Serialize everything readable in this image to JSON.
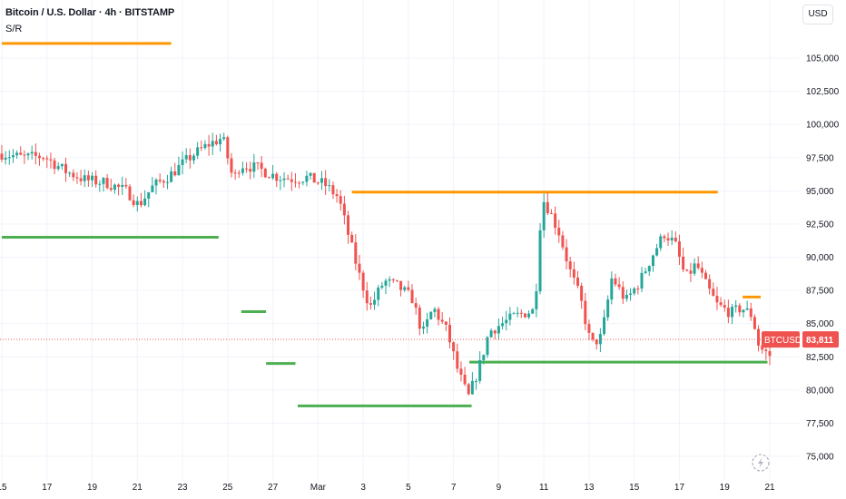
{
  "header": {
    "title": "Bitcoin / U.S. Dollar · 4h · BITSTAMP",
    "indicator": "S/R",
    "currency_button": "USD"
  },
  "colors": {
    "up": "#26a69a",
    "down": "#ef5350",
    "resistance": "#ff9800",
    "support": "#4caf50",
    "grid": "#f0f3fa",
    "price_line": "#ef5350"
  },
  "price_label": {
    "symbol": "BTCUSD",
    "value": "83,811",
    "price": 83811
  },
  "chart_data": {
    "type": "candlestick",
    "title": "Bitcoin / U.S. Dollar · 4h · BITSTAMP",
    "ylim": [
      73500,
      107800
    ],
    "y_ticks": [
      75000,
      77500,
      80000,
      82500,
      85000,
      87500,
      90000,
      92500,
      95000,
      97500,
      100000,
      102500,
      105000
    ],
    "y_tick_labels": [
      "75,000",
      "77,500",
      "80,000",
      "82,500",
      "85,000",
      "87,500",
      "90,000",
      "92,500",
      "95,000",
      "97,500",
      "100,000",
      "102,500",
      "105,000"
    ],
    "x_ticks": [
      "15",
      "17",
      "19",
      "21",
      "23",
      "25",
      "27",
      "Mar",
      "3",
      "5",
      "7",
      "9",
      "11",
      "13",
      "15",
      "17",
      "19",
      "21"
    ],
    "x_range_days": [
      15,
      36.9
    ],
    "grid": true,
    "close_path": [
      [
        15.0,
        97800
      ],
      [
        15.6,
        97500
      ],
      [
        16.2,
        97600
      ],
      [
        16.8,
        96500
      ],
      [
        17.4,
        95800
      ],
      [
        18.0,
        95600
      ],
      [
        18.6,
        94900
      ],
      [
        18.9,
        93900
      ],
      [
        19.3,
        95300
      ],
      [
        19.8,
        96200
      ],
      [
        20.4,
        97600
      ],
      [
        20.9,
        98500
      ],
      [
        21.3,
        99000
      ],
      [
        21.6,
        95800
      ],
      [
        21.8,
        97000
      ],
      [
        22.3,
        96700
      ],
      [
        22.8,
        96100
      ],
      [
        23.3,
        95900
      ],
      [
        23.7,
        96000
      ],
      [
        24.2,
        95500
      ],
      [
        24.6,
        94500
      ],
      [
        24.9,
        91500
      ],
      [
        25.2,
        88600
      ],
      [
        25.5,
        86200
      ],
      [
        25.9,
        88200
      ],
      [
        26.3,
        87800
      ],
      [
        26.7,
        86900
      ],
      [
        27.0,
        84200
      ],
      [
        27.3,
        86200
      ],
      [
        27.7,
        84400
      ],
      [
        28.0,
        81500
      ],
      [
        28.3,
        79400
      ],
      [
        28.6,
        81600
      ],
      [
        28.9,
        84400
      ],
      [
        29.2,
        84900
      ],
      [
        29.6,
        85500
      ],
      [
        29.9,
        85800
      ],
      [
        30.2,
        86000
      ],
      [
        30.4,
        94500
      ],
      [
        30.6,
        93600
      ],
      [
        30.9,
        91800
      ],
      [
        31.2,
        89000
      ],
      [
        31.5,
        86900
      ],
      [
        31.8,
        83400
      ],
      [
        32.1,
        84000
      ],
      [
        32.4,
        88500
      ],
      [
        32.8,
        86700
      ],
      [
        33.2,
        88200
      ],
      [
        33.6,
        90400
      ],
      [
        33.9,
        91800
      ],
      [
        34.2,
        91000
      ],
      [
        34.5,
        88400
      ],
      [
        34.8,
        89500
      ],
      [
        35.1,
        87800
      ],
      [
        35.4,
        86400
      ],
      [
        35.8,
        85800
      ],
      [
        36.1,
        86200
      ],
      [
        36.4,
        85600
      ],
      [
        36.6,
        83200
      ],
      [
        36.9,
        82600
      ]
    ],
    "close_path_unused": false,
    "candles": [],
    "levels": [
      {
        "role": "resistance",
        "price": 106100,
        "from": 15.0,
        "to": 22.5
      },
      {
        "role": "support",
        "price": 91500,
        "from": 15.0,
        "to": 24.6
      },
      {
        "role": "support",
        "price": 85900,
        "from": 25.6,
        "to": 26.7
      },
      {
        "role": "support",
        "price": 82000,
        "from": 26.7,
        "to": 28.0
      },
      {
        "role": "support",
        "price": 78800,
        "from": 28.1,
        "to": 35.8
      },
      {
        "role": "resistance",
        "price": 94900,
        "from": 30.5,
        "to": 46.7
      },
      {
        "role": "support",
        "price": 82100,
        "from": 35.7,
        "to": 48.9
      },
      {
        "role": "resistance",
        "price": 87000,
        "from": 47.8,
        "to": 48.6
      }
    ]
  }
}
